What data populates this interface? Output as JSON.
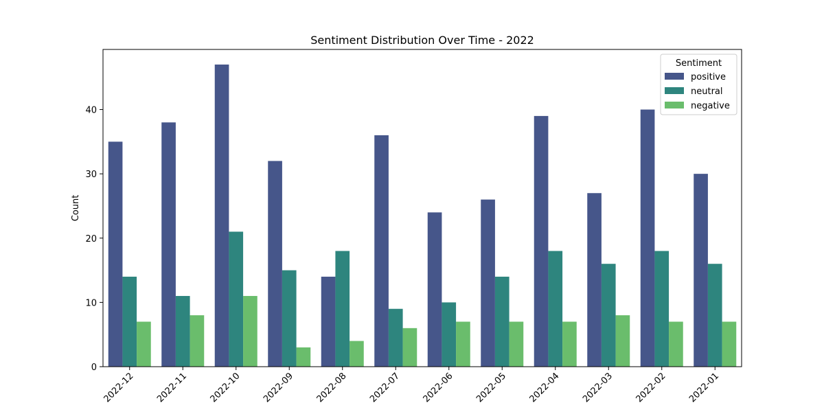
{
  "chart_data": {
    "type": "bar",
    "title": "Sentiment Distribution Over Time - 2022",
    "xlabel": "",
    "ylabel": "Count",
    "ylim": [
      0,
      49.35
    ],
    "yticks": [
      0,
      10,
      20,
      30,
      40
    ],
    "grid": false,
    "categories": [
      "2022-12",
      "2022-11",
      "2022-10",
      "2022-09",
      "2022-08",
      "2022-07",
      "2022-06",
      "2022-05",
      "2022-04",
      "2022-03",
      "2022-02",
      "2022-01"
    ],
    "series": [
      {
        "name": "positive",
        "color": "#46568a",
        "values": [
          35,
          38,
          47,
          32,
          14,
          36,
          24,
          26,
          39,
          27,
          40,
          30
        ]
      },
      {
        "name": "neutral",
        "color": "#2e857e",
        "values": [
          14,
          11,
          21,
          15,
          18,
          9,
          10,
          14,
          18,
          16,
          18,
          16
        ]
      },
      {
        "name": "negative",
        "color": "#6abd6c",
        "values": [
          7,
          8,
          11,
          3,
          4,
          6,
          7,
          7,
          7,
          8,
          7,
          7
        ]
      }
    ],
    "legend": {
      "title": "Sentiment",
      "placement": "top-right"
    }
  }
}
